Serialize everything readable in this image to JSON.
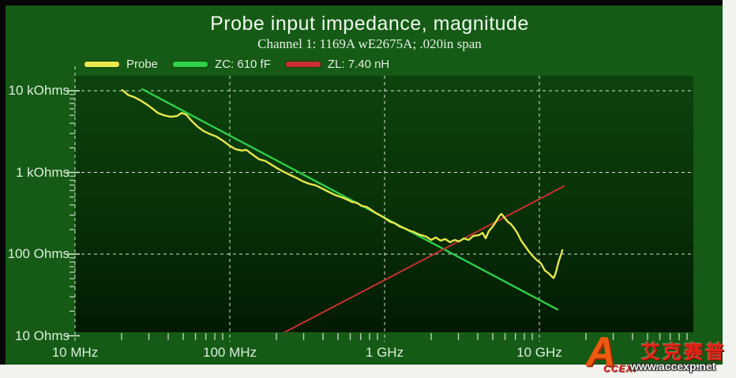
{
  "title": "Probe input impedance, magnitude",
  "subtitle": "Channel 1: 1169A wE2675A; .020in span",
  "legend": [
    {
      "label": "Probe",
      "color": "#e8e84d"
    },
    {
      "label": "ZC: 610 fF",
      "color": "#2fd04a"
    },
    {
      "label": "ZL: 7.40 nH",
      "color": "#c83030"
    }
  ],
  "watermark": {
    "logo_a": "A",
    "logo_text": "CCEXP",
    "cn_text": "艾克赛普",
    "url": "www.accexp.net"
  },
  "chart_data": {
    "type": "line",
    "x_scale": "log",
    "y_scale": "log",
    "x_unit": "MHz",
    "y_unit": "Ohms",
    "grid": true,
    "legend_position": "top-left",
    "x_ticks": [
      {
        "label": "10 MHz",
        "mhz": 10
      },
      {
        "label": "100 MHz",
        "mhz": 100
      },
      {
        "label": "1 GHz",
        "mhz": 1000
      },
      {
        "label": "10 GHz",
        "mhz": 10000
      }
    ],
    "y_ticks": [
      {
        "label": "10 kOhms",
        "ohms": 10000
      },
      {
        "label": "1 kOhms",
        "ohms": 1000
      },
      {
        "label": "100 Ohms",
        "ohms": 100
      },
      {
        "label": "10 Ohms",
        "ohms": 10
      }
    ],
    "x_range_mhz": [
      10,
      99000
    ],
    "y_range_ohms": [
      10,
      14500
    ],
    "series": [
      {
        "name": "ZC: 610 fF",
        "color": "#2fd04a",
        "width": 2.4,
        "points": [
          [
            27.2,
            10450
          ],
          [
            13090,
            21
          ]
        ]
      },
      {
        "name": "ZL: 7.40 nH",
        "color": "#c83030",
        "width": 2.0,
        "points": [
          [
            205,
            10
          ],
          [
            14390,
            678
          ]
        ]
      },
      {
        "name": "Probe",
        "color": "#e8e84d",
        "width": 2.4,
        "points": [
          [
            20.2,
            10200
          ],
          [
            22,
            8900
          ],
          [
            24.1,
            8350
          ],
          [
            26.5,
            7600
          ],
          [
            29.1,
            6800
          ],
          [
            32,
            5950
          ],
          [
            34.3,
            5350
          ],
          [
            37.7,
            5000
          ],
          [
            41.4,
            4800
          ],
          [
            45.5,
            4900
          ],
          [
            48.9,
            5350
          ],
          [
            52.4,
            5100
          ],
          [
            56.2,
            4350
          ],
          [
            61.8,
            3650
          ],
          [
            67.9,
            3200
          ],
          [
            74.5,
            2950
          ],
          [
            81.9,
            2750
          ],
          [
            90,
            2450
          ],
          [
            99,
            2150
          ],
          [
            108.6,
            1930
          ],
          [
            119.4,
            1850
          ],
          [
            127.9,
            1890
          ],
          [
            140.6,
            1650
          ],
          [
            154.5,
            1450
          ],
          [
            169.8,
            1380
          ],
          [
            186.2,
            1240
          ],
          [
            204.7,
            1110
          ],
          [
            224.9,
            1010
          ],
          [
            247.2,
            925
          ],
          [
            271.6,
            850
          ],
          [
            297.9,
            775
          ],
          [
            327.3,
            725
          ],
          [
            359.7,
            695
          ],
          [
            395.4,
            635
          ],
          [
            434.5,
            580
          ],
          [
            477.5,
            530
          ],
          [
            523.6,
            500
          ],
          [
            575,
            464
          ],
          [
            618,
            434
          ],
          [
            663,
            425
          ],
          [
            711,
            388
          ],
          [
            764,
            380
          ],
          [
            819,
            348
          ],
          [
            879,
            318
          ],
          [
            943,
            297
          ],
          [
            1012,
            272
          ],
          [
            1086,
            249
          ],
          [
            1165,
            238
          ],
          [
            1250,
            218
          ],
          [
            1341,
            208
          ],
          [
            1438,
            195
          ],
          [
            1545,
            187
          ],
          [
            1656,
            175
          ],
          [
            1864,
            163
          ],
          [
            2000,
            149
          ],
          [
            2143,
            160
          ],
          [
            2299,
            146
          ],
          [
            2465,
            153
          ],
          [
            2643,
            140
          ],
          [
            2834,
            149
          ],
          [
            3039,
            143
          ],
          [
            3259,
            156
          ],
          [
            3494,
            149
          ],
          [
            3747,
            167
          ],
          [
            4046,
            170
          ],
          [
            4297,
            182
          ],
          [
            4498,
            156
          ],
          [
            4714,
            191
          ],
          [
            5000,
            218
          ],
          [
            5236,
            249
          ],
          [
            5493,
            291
          ],
          [
            5689,
            311
          ],
          [
            5966,
            278
          ],
          [
            6252,
            249
          ],
          [
            6550,
            233
          ],
          [
            6866,
            208
          ],
          [
            7194,
            182
          ],
          [
            7635,
            146
          ],
          [
            8092,
            125
          ],
          [
            8588,
            107
          ],
          [
            9105,
            94
          ],
          [
            9658,
            84
          ],
          [
            10233,
            77
          ],
          [
            10862,
            63
          ],
          [
            11376,
            59
          ],
          [
            11937,
            54
          ],
          [
            12360,
            51
          ],
          [
            12647,
            56
          ],
          [
            12941,
            65
          ],
          [
            13243,
            78
          ],
          [
            13577,
            90
          ],
          [
            13893,
            102
          ],
          [
            14057,
            112
          ]
        ]
      }
    ]
  }
}
